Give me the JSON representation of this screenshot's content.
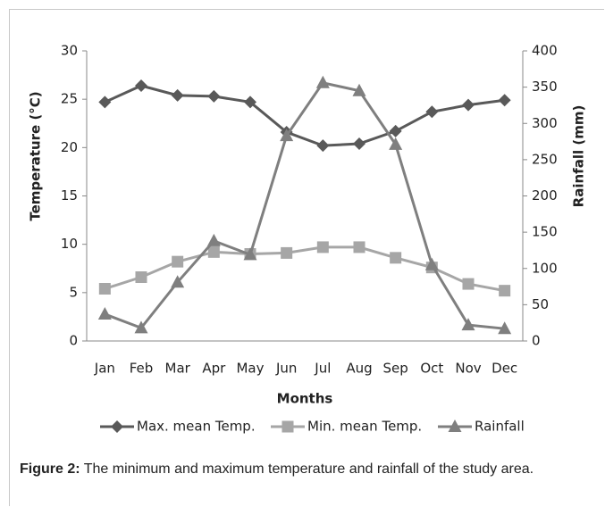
{
  "chart_data": {
    "type": "line",
    "x_label": "Months",
    "y_label": "Temperature (°C)",
    "y2_label": "Rainfall (mm)",
    "categories": [
      "Jan",
      "Feb",
      "Mar",
      "Apr",
      "May",
      "Jun",
      "Jul",
      "Aug",
      "Sep",
      "Oct",
      "Nov",
      "Dec"
    ],
    "series": [
      {
        "name": "Max. mean Temp.",
        "color": "#595959",
        "marker": "diamond",
        "values": [
          24.7,
          26.4,
          25.4,
          25.3,
          24.7,
          21.6,
          20.2,
          20.4,
          21.7,
          23.7,
          24.4,
          24.9
        ]
      },
      {
        "name": "Min. mean Temp.",
        "color": "#a6a6a6",
        "marker": "square",
        "values": [
          5.4,
          6.6,
          8.2,
          9.2,
          9.0,
          9.1,
          9.7,
          9.7,
          8.6,
          7.6,
          5.9,
          5.2
        ]
      },
      {
        "name": "Rainfall",
        "color": "#7f7f7f",
        "marker": "triangle",
        "axis": "y2",
        "values": [
          37,
          18,
          81,
          138,
          119,
          283,
          356,
          345,
          271,
          105,
          22,
          17
        ]
      }
    ],
    "ylim": [
      0,
      30
    ],
    "yticks": [
      0,
      5,
      10,
      15,
      20,
      25,
      30
    ],
    "y2lim": [
      0,
      400
    ],
    "y2ticks": [
      0,
      50,
      100,
      150,
      200,
      250,
      300,
      350,
      400
    ],
    "legend": "bottom"
  },
  "caption": {
    "label": "Figure 2:",
    "text": "The minimum and maximum temperature and rainfall of the study area."
  }
}
